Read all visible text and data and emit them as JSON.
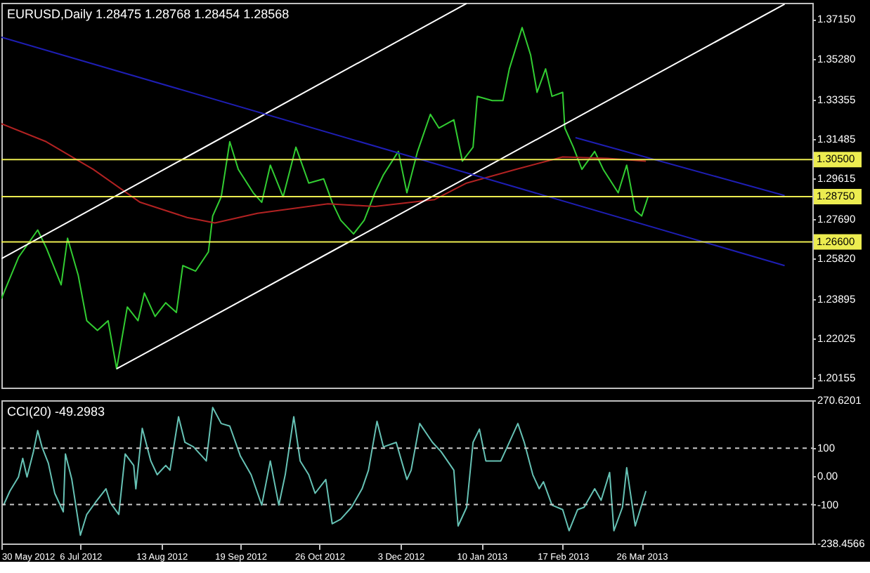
{
  "chart_data": [
    {
      "type": "line",
      "title": "EURUSD,Daily 1.28475 1.28768 1.28454 1.28568",
      "xlim": [
        "2012-05-30",
        "2013-06-14"
      ],
      "ylim": [
        1.197,
        1.3793
      ],
      "yticks": [
        {
          "value": 1.3715,
          "label": "1.37150"
        },
        {
          "value": 1.3528,
          "label": "1.35280"
        },
        {
          "value": 1.33355,
          "label": "1.33355"
        },
        {
          "value": 1.31485,
          "label": "1.31485"
        },
        {
          "value": 1.29615,
          "label": "1.29615"
        },
        {
          "value": 1.2769,
          "label": "1.27690"
        },
        {
          "value": 1.2582,
          "label": "1.25820"
        },
        {
          "value": 1.23895,
          "label": "1.23895"
        },
        {
          "value": 1.22025,
          "label": "1.22025"
        },
        {
          "value": 1.20155,
          "label": "1.20155"
        }
      ],
      "tick_labels": "y",
      "grid": false,
      "marker": "none",
      "line_style": "solid",
      "series": [
        {
          "color": "#32cd32",
          "x": [
            "2012-05-30",
            "2012-06-07",
            "2012-06-16",
            "2012-06-20",
            "2012-06-27",
            "2012-06-30",
            "2012-07-05",
            "2012-07-09",
            "2012-07-14",
            "2012-07-19",
            "2012-07-23",
            "2012-07-28",
            "2012-08-02",
            "2012-08-05",
            "2012-08-10",
            "2012-08-15",
            "2012-08-20",
            "2012-08-23",
            "2012-08-29",
            "2012-09-04",
            "2012-09-06",
            "2012-09-10",
            "2012-09-14",
            "2012-09-18",
            "2012-09-25",
            "2012-09-29",
            "2012-10-03",
            "2012-10-09",
            "2012-10-15",
            "2012-10-21",
            "2012-10-28",
            "2012-11-01",
            "2012-11-05",
            "2012-11-11",
            "2012-11-16",
            "2012-11-21",
            "2012-11-25",
            "2012-12-02",
            "2012-12-06",
            "2012-12-11",
            "2012-12-17",
            "2012-12-21",
            "2012-12-28",
            "2013-01-01",
            "2013-01-06",
            "2013-01-08",
            "2013-01-15",
            "2013-01-20",
            "2013-01-23",
            "2013-01-29",
            "2013-02-02",
            "2013-02-05",
            "2013-02-09",
            "2013-02-12",
            "2013-02-17",
            "2013-02-18",
            "2013-02-22",
            "2013-02-26",
            "2013-03-04",
            "2013-03-08",
            "2013-03-15",
            "2013-03-19",
            "2013-03-23",
            "2013-03-26",
            "2013-03-29"
          ],
          "values": [
            1.2391,
            1.2587,
            1.2717,
            1.2633,
            1.2457,
            1.2678,
            1.2502,
            1.2287,
            1.2241,
            1.2287,
            1.2059,
            1.2352,
            1.2287,
            1.2418,
            1.2307,
            1.2372,
            1.2326,
            1.2548,
            1.2522,
            1.2613,
            1.2783,
            1.2874,
            1.3135,
            1.3004,
            1.2893,
            1.2848,
            1.3024,
            1.2874,
            1.3109,
            1.2939,
            1.2959,
            1.2848,
            1.2763,
            1.2698,
            1.2763,
            1.2893,
            1.2978,
            1.3089,
            1.2893,
            1.3089,
            1.3265,
            1.32,
            1.3239,
            1.3043,
            1.3109,
            1.335,
            1.333,
            1.333,
            1.348,
            1.3676,
            1.3545,
            1.3369,
            1.348,
            1.335,
            1.3369,
            1.32,
            1.3109,
            1.3004,
            1.3089,
            1.3004,
            1.2893,
            1.3024,
            1.2809,
            1.2783,
            1.2874
          ]
        },
        {
          "color": "#b22222",
          "x": [
            "2012-05-30",
            "2012-06-20",
            "2012-07-12",
            "2012-08-03",
            "2012-08-25",
            "2012-09-07",
            "2012-09-27",
            "2012-10-30",
            "2012-11-21",
            "2012-12-19",
            "2013-01-03",
            "2013-01-26",
            "2013-02-17",
            "2013-03-10",
            "2013-03-28"
          ],
          "values": [
            1.322,
            1.3135,
            1.3004,
            1.2848,
            1.2776,
            1.275,
            1.2796,
            1.2841,
            1.2828,
            1.2861,
            1.2939,
            1.3004,
            1.3063,
            1.3056,
            1.3043
          ]
        },
        {
          "color": "#ffffff",
          "x": [
            "2012-05-30",
            "2013-01-03"
          ],
          "values": [
            1.2581,
            1.379
          ]
        },
        {
          "color": "#ffffff",
          "x": [
            "2012-07-23",
            "2013-06-01"
          ],
          "values": [
            1.2059,
            1.3787
          ]
        },
        {
          "color": "#1e1eb4",
          "x": [
            "2012-05-30",
            "2013-06-01"
          ],
          "values": [
            1.363,
            1.2548
          ]
        },
        {
          "color": "#1e1eb4",
          "x": [
            "2013-02-23",
            "2013-06-01"
          ],
          "values": [
            1.3154,
            1.288
          ]
        }
      ],
      "ref_lines": [
        {
          "axis": "y",
          "value": 1.305,
          "label": "1.30500",
          "color": "#ecec50"
        },
        {
          "axis": "y",
          "value": 1.2875,
          "label": "1.28750",
          "color": "#ecec50"
        },
        {
          "axis": "y",
          "value": 1.266,
          "label": "1.26600",
          "color": "#ecec50"
        }
      ]
    },
    {
      "type": "line",
      "title": "CCI(20) -49.2983",
      "xlim": [
        "2012-05-30",
        "2013-06-14"
      ],
      "xticks": [
        {
          "value": "2012-05-30",
          "label": "30 May 2012"
        },
        {
          "value": "2012-07-06",
          "label": "6 Jul 2012"
        },
        {
          "value": "2012-08-13",
          "label": "13 Aug 2012"
        },
        {
          "value": "2012-09-19",
          "label": "19 Sep 2012"
        },
        {
          "value": "2012-10-26",
          "label": "26 Oct 2012"
        },
        {
          "value": "2012-12-03",
          "label": "3 Dec 2012"
        },
        {
          "value": "2013-01-10",
          "label": "10 Jan 2013"
        },
        {
          "value": "2013-02-17",
          "label": "17 Feb 2013"
        },
        {
          "value": "2013-03-26",
          "label": "26 Mar 2013"
        }
      ],
      "ylim": [
        -238.4566,
        270.6201
      ],
      "yticks": [
        270.6201,
        100,
        {
          "value": 0,
          "label": "0.00"
        },
        -100,
        -238.4566
      ],
      "grid": false,
      "marker": "none",
      "line_style": "solid",
      "series": [
        {
          "color": "#66c2b5",
          "x": [
            "2012-05-31",
            "2012-06-03",
            "2012-06-07",
            "2012-06-09",
            "2012-06-11",
            "2012-06-14",
            "2012-06-16",
            "2012-06-18",
            "2012-06-21",
            "2012-06-24",
            "2012-06-28",
            "2012-06-29",
            "2012-07-02",
            "2012-07-06",
            "2012-07-09",
            "2012-07-13",
            "2012-07-18",
            "2012-07-20",
            "2012-07-24",
            "2012-07-27",
            "2012-07-31",
            "2012-08-01",
            "2012-08-04",
            "2012-08-08",
            "2012-08-11",
            "2012-08-15",
            "2012-08-17",
            "2012-08-21",
            "2012-08-24",
            "2012-08-28",
            "2012-09-03",
            "2012-09-06",
            "2012-09-10",
            "2012-09-14",
            "2012-09-19",
            "2012-09-24",
            "2012-09-29",
            "2012-10-03",
            "2012-10-07",
            "2012-10-10",
            "2012-10-14",
            "2012-10-17",
            "2012-10-21",
            "2012-10-24",
            "2012-10-29",
            "2012-11-01",
            "2012-11-05",
            "2012-11-10",
            "2012-11-15",
            "2012-11-18",
            "2012-11-22",
            "2012-11-25",
            "2012-12-01",
            "2012-12-06",
            "2012-12-08",
            "2012-12-12",
            "2012-12-18",
            "2012-12-22",
            "2012-12-28",
            "2012-12-30",
            "2013-01-03",
            "2013-01-06",
            "2013-01-09",
            "2013-01-12",
            "2013-01-19",
            "2013-01-23",
            "2013-01-27",
            "2013-01-30",
            "2013-02-03",
            "2013-02-06",
            "2013-02-08",
            "2013-02-12",
            "2013-02-17",
            "2013-02-20",
            "2013-02-24",
            "2013-02-27",
            "2013-03-04",
            "2013-03-07",
            "2013-03-11",
            "2013-03-13",
            "2013-03-17",
            "2013-03-19",
            "2013-03-23",
            "2013-03-28"
          ],
          "values": [
            -102,
            -52,
            -2,
            64,
            -2,
            88,
            163,
            105,
            47,
            -60,
            -126,
            80,
            -11,
            -209,
            -135,
            -93,
            -44,
            -93,
            -135,
            80,
            39,
            -44,
            171,
            55,
            6,
            39,
            22,
            212,
            121,
            105,
            55,
            245,
            188,
            179,
            72,
            6,
            -102,
            55,
            -102,
            6,
            212,
            55,
            6,
            -60,
            -11,
            -168,
            -152,
            -110,
            -44,
            22,
            196,
            105,
            121,
            -11,
            22,
            188,
            121,
            88,
            22,
            -176,
            -110,
            121,
            168,
            55,
            55,
            121,
            188,
            121,
            6,
            -44,
            -19,
            -102,
            -118,
            -193,
            -118,
            -110,
            -44,
            -85,
            14,
            -193,
            -110,
            31,
            -176,
            -52
          ]
        }
      ],
      "ref_lines": [
        {
          "axis": "y",
          "value": 100,
          "color": "#c8c8c8",
          "line_style": "dashed"
        },
        {
          "axis": "y",
          "value": -100,
          "color": "#c8c8c8",
          "line_style": "dashed"
        }
      ]
    }
  ]
}
